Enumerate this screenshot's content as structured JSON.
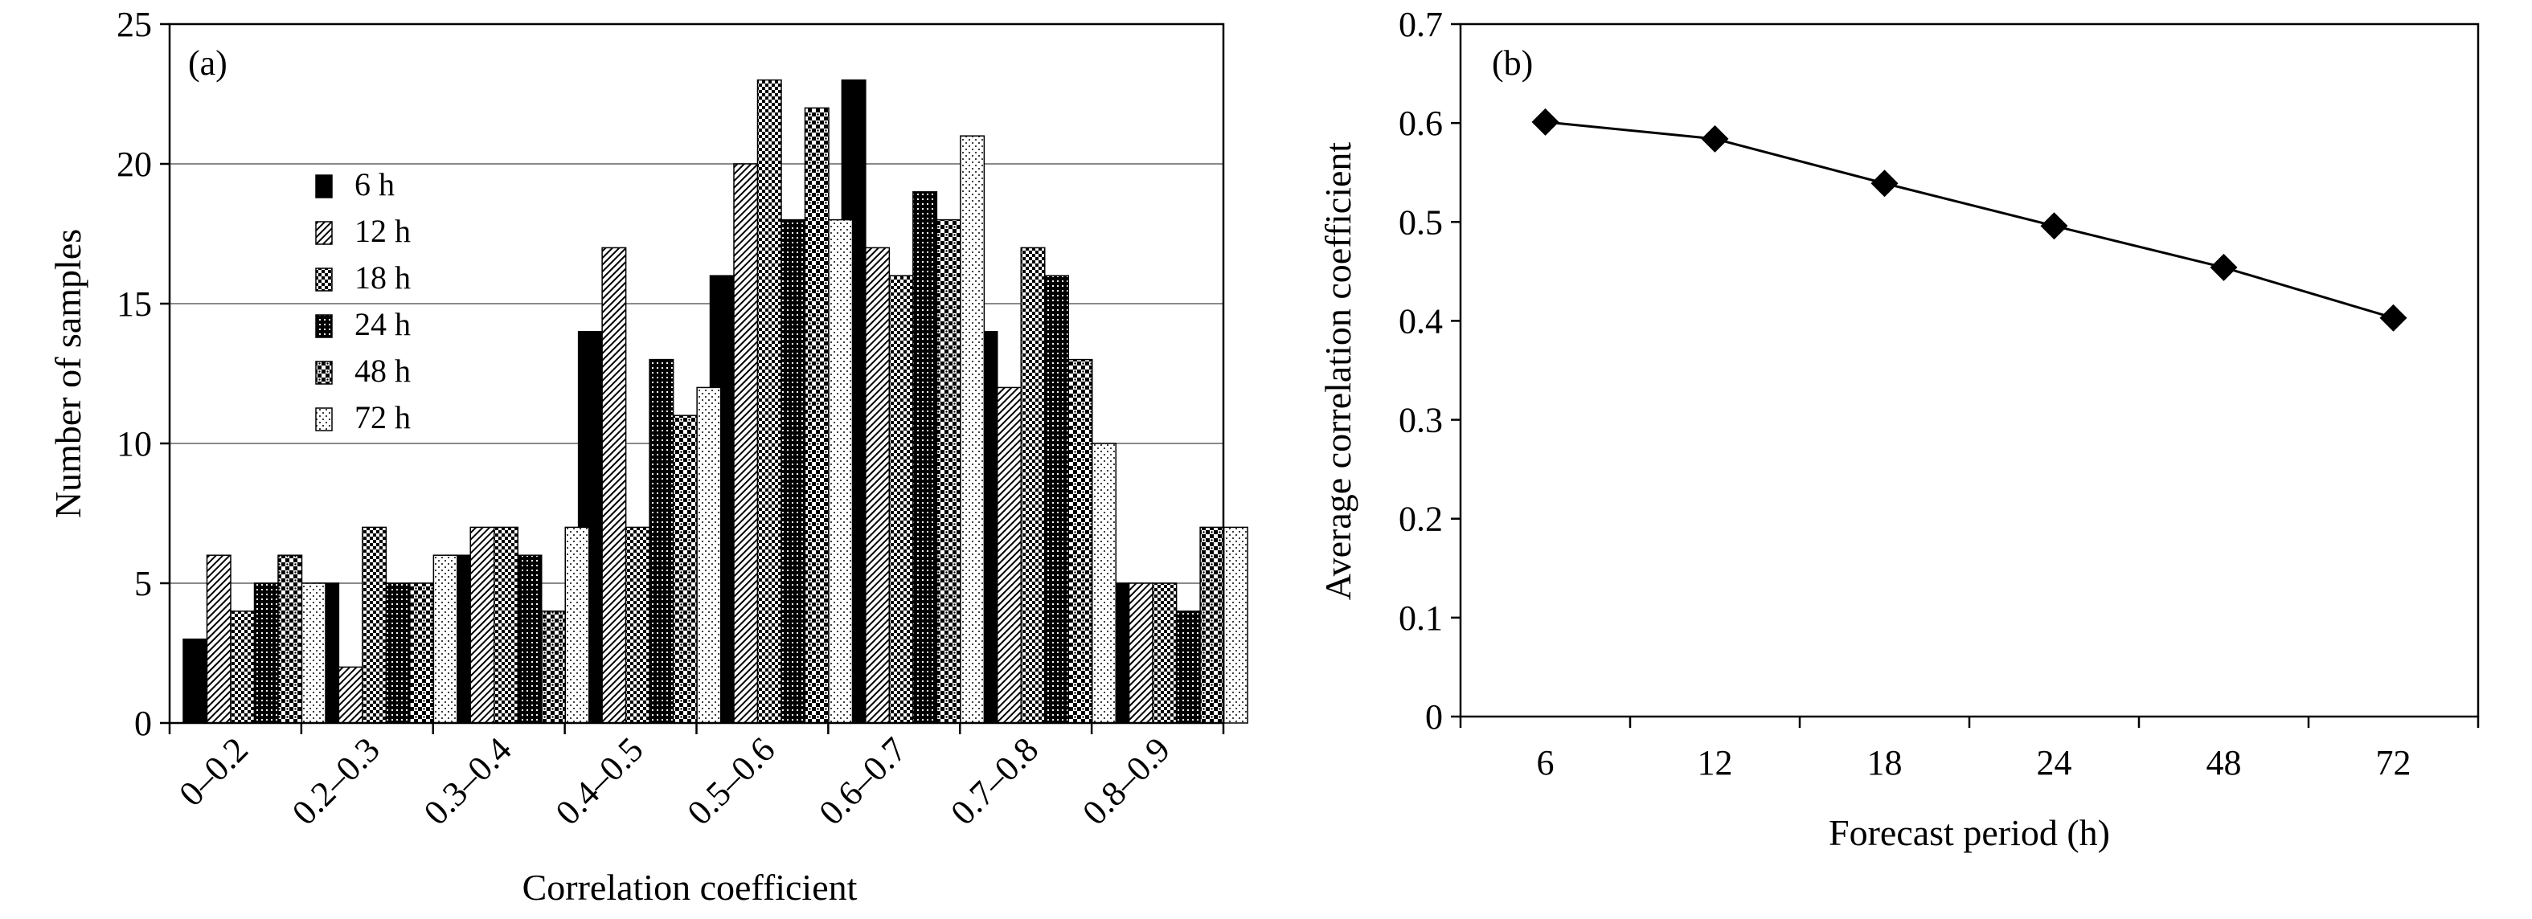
{
  "chart_data": [
    {
      "panel": "(a)",
      "type": "bar",
      "xlabel": "Correlation coefficient",
      "ylabel": "Number of samples",
      "ylim": [
        0,
        25
      ],
      "yticks": [
        0,
        5,
        10,
        15,
        20,
        25
      ],
      "grid": true,
      "legend_position": "top-left",
      "categories": [
        "0–0.2",
        "0.2–0.3",
        "0.3–0.4",
        "0.4–0.5",
        "0.5–0.6",
        "0.6–0.7",
        "0.7–0.8",
        "0.8–0.9"
      ],
      "series": [
        {
          "name": "6 h",
          "fill": "solid",
          "values": [
            3,
            5,
            6,
            14,
            16,
            23,
            14,
            5
          ]
        },
        {
          "name": "12 h",
          "fill": "diag",
          "values": [
            6,
            2,
            7,
            17,
            20,
            17,
            12,
            5
          ]
        },
        {
          "name": "18 h",
          "fill": "check",
          "values": [
            4,
            7,
            7,
            7,
            23,
            16,
            17,
            5
          ]
        },
        {
          "name": "24 h",
          "fill": "dense",
          "values": [
            5,
            5,
            6,
            13,
            18,
            19,
            16,
            4
          ]
        },
        {
          "name": "48 h",
          "fill": "check2",
          "values": [
            6,
            5,
            4,
            11,
            22,
            18,
            13,
            7
          ]
        },
        {
          "name": "72 h",
          "fill": "dots",
          "values": [
            5,
            6,
            7,
            12,
            18,
            21,
            10,
            7
          ]
        }
      ]
    },
    {
      "panel": "(b)",
      "type": "line",
      "xlabel": "Forecast period (h)",
      "ylabel": "Average correlation coefficient",
      "ylim": [
        0,
        0.7
      ],
      "yticks": [
        "0",
        "0.1",
        "0.2",
        "0.3",
        "0.4",
        "0.5",
        "0.6",
        "0.7"
      ],
      "grid": false,
      "categories": [
        "6",
        "12",
        "18",
        "24",
        "48",
        "72"
      ],
      "series": [
        {
          "name": "Average correlation coefficient",
          "marker": "diamond",
          "values": [
            0.601,
            0.584,
            0.539,
            0.496,
            0.454,
            0.403
          ]
        }
      ]
    }
  ]
}
